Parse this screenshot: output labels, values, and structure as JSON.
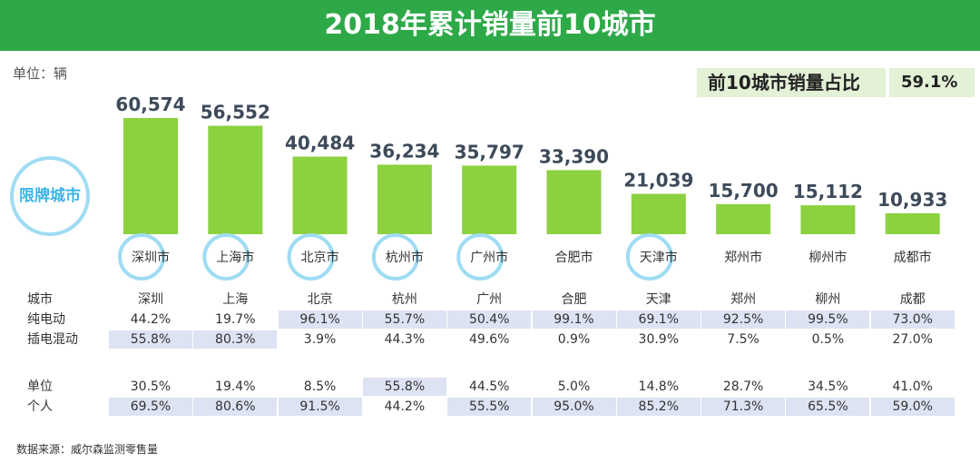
{
  "title": "2018年累计销量前10城市",
  "unit_label": "单位：辆",
  "share": {
    "label": "前10城市销量占比",
    "value": "59.1%"
  },
  "restricted_label": "限牌城市",
  "chart_data": {
    "type": "bar",
    "title": "2018年累计销量前10城市",
    "ylabel": "单位：辆",
    "categories": [
      "深圳市",
      "上海市",
      "北京市",
      "杭州市",
      "广州市",
      "合肥市",
      "天津市",
      "郑州市",
      "柳州市",
      "成都市"
    ],
    "values": [
      60574,
      56552,
      40484,
      36234,
      35797,
      33390,
      21039,
      15700,
      15112,
      10933
    ],
    "value_labels": [
      "60,574",
      "56,552",
      "40,484",
      "36,234",
      "35,797",
      "33,390",
      "21,039",
      "15,700",
      "15,112",
      "10,933"
    ],
    "restricted": [
      true,
      true,
      true,
      true,
      true,
      false,
      true,
      false,
      false,
      false
    ],
    "ylim": [
      0,
      60574
    ],
    "bar_color": "#8cd140",
    "ring_color": "#9fdcf4"
  },
  "table": {
    "header_label": "城市",
    "cities": [
      "深圳",
      "上海",
      "北京",
      "杭州",
      "广州",
      "合肥",
      "天津",
      "郑州",
      "柳州",
      "成都"
    ],
    "rows": [
      {
        "label": "纯电动",
        "values": [
          "44.2%",
          "19.7%",
          "96.1%",
          "55.7%",
          "50.4%",
          "99.1%",
          "69.1%",
          "92.5%",
          "99.5%",
          "73.0%"
        ],
        "highlight": [
          false,
          false,
          true,
          true,
          true,
          true,
          true,
          true,
          true,
          true
        ]
      },
      {
        "label": "插电混动",
        "values": [
          "55.8%",
          "80.3%",
          "3.9%",
          "44.3%",
          "49.6%",
          "0.9%",
          "30.9%",
          "7.5%",
          "0.5%",
          "27.0%"
        ],
        "highlight": [
          true,
          true,
          false,
          false,
          false,
          false,
          false,
          false,
          false,
          false
        ]
      },
      {
        "label": "单位",
        "values": [
          "30.5%",
          "19.4%",
          "8.5%",
          "55.8%",
          "44.5%",
          "5.0%",
          "14.8%",
          "28.7%",
          "34.5%",
          "41.0%"
        ],
        "highlight": [
          false,
          false,
          false,
          true,
          false,
          false,
          false,
          false,
          false,
          false
        ]
      },
      {
        "label": "个人",
        "values": [
          "69.5%",
          "80.6%",
          "91.5%",
          "44.2%",
          "55.5%",
          "95.0%",
          "85.2%",
          "71.3%",
          "65.5%",
          "59.0%"
        ],
        "highlight": [
          true,
          true,
          true,
          false,
          true,
          true,
          true,
          true,
          true,
          true
        ]
      }
    ]
  },
  "source": "数据来源：威尔森监测零售量",
  "colors": {
    "header": "#2ea948",
    "bar": "#8cd140",
    "highlight": "#dde3f3",
    "ring": "#9fdcf4"
  }
}
